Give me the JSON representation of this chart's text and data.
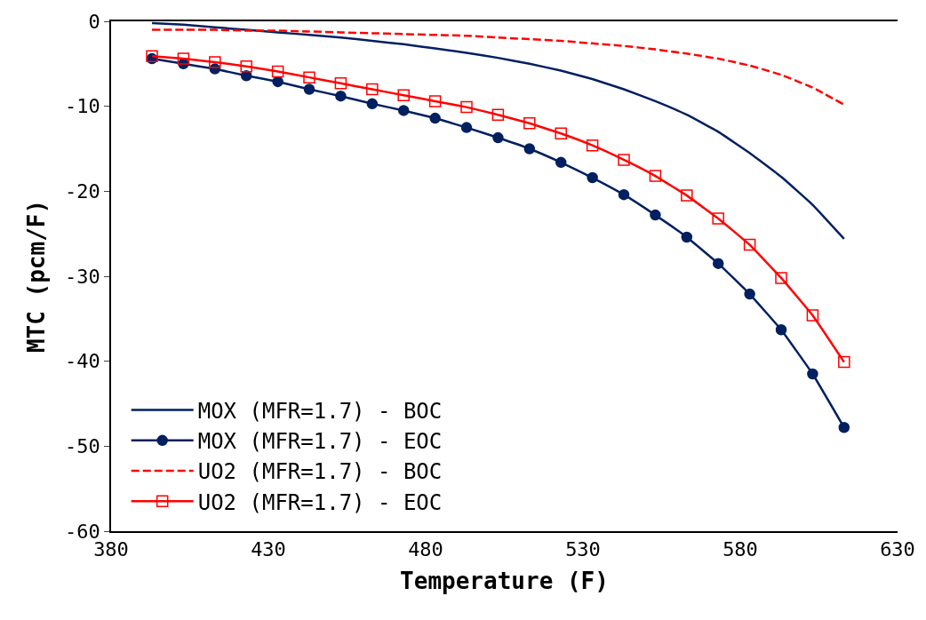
{
  "chart_data": {
    "type": "line",
    "xlabel": "Temperature (F)",
    "ylabel": "MTC (pcm/F)",
    "x": [
      393,
      403,
      413,
      423,
      433,
      443,
      453,
      463,
      473,
      483,
      493,
      503,
      513,
      523,
      533,
      543,
      553,
      563,
      573,
      583,
      593,
      603,
      613
    ],
    "xlim": [
      380,
      630
    ],
    "xticks": [
      380,
      430,
      480,
      530,
      580,
      630
    ],
    "ylim": [
      -60,
      0
    ],
    "yticks": [
      -60,
      -50,
      -40,
      -30,
      -20,
      -10,
      0
    ],
    "legend": "bottom left",
    "series": [
      {
        "name": "MOX (MFR=1.7) - BOC",
        "color": "#002060",
        "marker": "none",
        "line_style": "solid",
        "values": [
          -0.2,
          -0.4,
          -0.7,
          -1.0,
          -1.3,
          -1.6,
          -1.9,
          -2.3,
          -2.7,
          -3.2,
          -3.7,
          -4.3,
          -5.0,
          -5.8,
          -6.8,
          -8.0,
          -9.4,
          -11.0,
          -13.0,
          -15.5,
          -18.3,
          -21.6,
          -25.6
        ]
      },
      {
        "name": "MOX (MFR=1.7) - EOC",
        "color": "#002060",
        "marker": "circle",
        "line_style": "solid",
        "values": [
          -4.4,
          -5.0,
          -5.6,
          -6.4,
          -7.1,
          -8.0,
          -8.8,
          -9.7,
          -10.5,
          -11.4,
          -12.5,
          -13.7,
          -15.0,
          -16.6,
          -18.4,
          -20.4,
          -22.8,
          -25.4,
          -28.5,
          -32.1,
          -36.3,
          -41.5,
          -47.8
        ]
      },
      {
        "name": "UO2 (MFR=1.7) - BOC",
        "color": "#ff0000",
        "marker": "none",
        "line_style": "dashed",
        "values": [
          -1.0,
          -1.0,
          -1.0,
          -1.1,
          -1.1,
          -1.2,
          -1.3,
          -1.4,
          -1.5,
          -1.6,
          -1.7,
          -1.9,
          -2.1,
          -2.3,
          -2.6,
          -2.9,
          -3.3,
          -3.8,
          -4.4,
          -5.2,
          -6.3,
          -7.8,
          -9.8
        ]
      },
      {
        "name": "UO2 (MFR=1.7) - EOC",
        "color": "#ff0000",
        "marker": "square-open",
        "line_style": "solid",
        "values": [
          -4.1,
          -4.4,
          -4.8,
          -5.3,
          -5.9,
          -6.6,
          -7.3,
          -8.0,
          -8.7,
          -9.4,
          -10.1,
          -11.0,
          -12.0,
          -13.2,
          -14.6,
          -16.3,
          -18.2,
          -20.5,
          -23.2,
          -26.3,
          -30.2,
          -34.6,
          -40.1
        ]
      }
    ]
  }
}
